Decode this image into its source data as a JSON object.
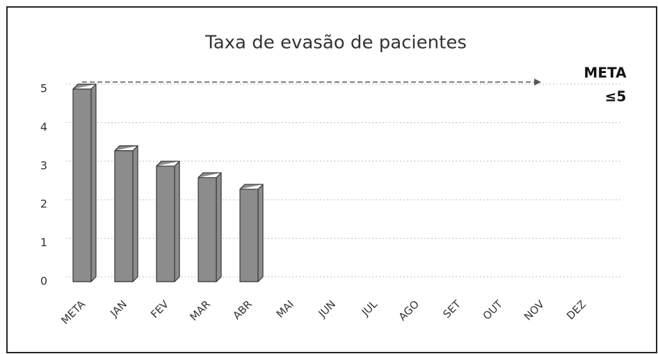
{
  "chart_data": {
    "type": "bar",
    "title": "Taxa de evasão de pacientes",
    "categories": [
      "META",
      "JAN",
      "FEV",
      "MAR",
      "ABR",
      "MAI",
      "JUN",
      "JUL",
      "AGO",
      "SET",
      "OUT",
      "NOV",
      "DEZ"
    ],
    "values": [
      5,
      3.4,
      3.0,
      2.7,
      2.4,
      null,
      null,
      null,
      null,
      null,
      null,
      null,
      null
    ],
    "color": "#8c8c8c",
    "ylim": [
      0,
      5
    ],
    "yticks": [
      0,
      1,
      2,
      3,
      4,
      5
    ],
    "grid": true,
    "annotations": [
      "META",
      "≤5"
    ]
  }
}
